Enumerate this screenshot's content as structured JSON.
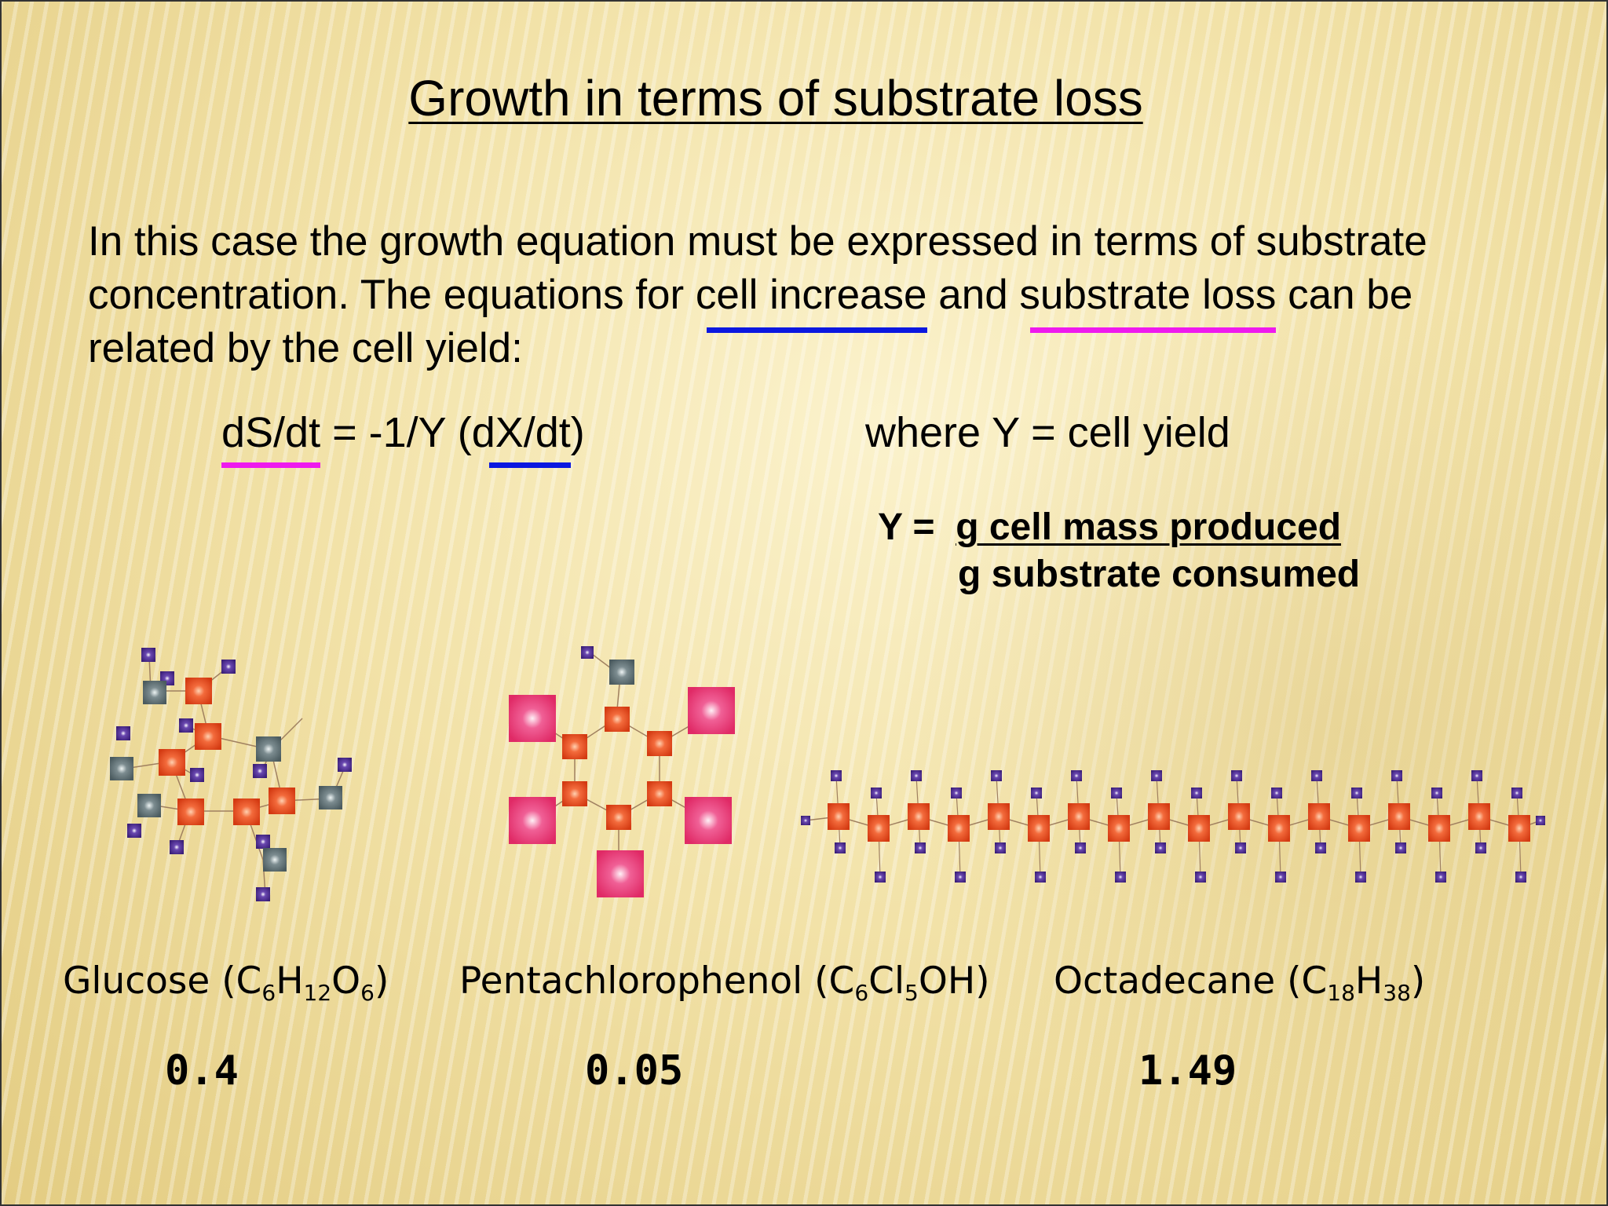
{
  "slide": {
    "title": "Growth in terms of substrate loss",
    "paragraph": {
      "line1": "In this case the growth equation must be expressed in terms of substrate",
      "line2_a": "concentration.  The equations for ",
      "line2_cell_increase": "cell increase",
      "line2_b": " and ",
      "line2_substrate_loss": "substrate loss",
      "line2_c": " can be",
      "line3": "related by the cell yield:"
    },
    "equation": {
      "ds_dt": "dS/dt",
      "middle": " = -1/Y (",
      "dx_dt": "dX/dt",
      "close": ")"
    },
    "where_text": "where Y = cell yield",
    "yield_def": {
      "prefix": "Y =  ",
      "numerator": "g cell mass produced",
      "denominator": "g substrate consumed"
    },
    "compounds": [
      {
        "name": "Glucose (C",
        "s1": "6",
        "m1": "H",
        "s2": "12",
        "m2": "O",
        "s3": "6",
        "end": ")",
        "yield": "0.4"
      },
      {
        "name": "Pentachlorophenol (C",
        "s1": "6",
        "m1": "Cl",
        "s2": "5",
        "end": "OH)",
        "yield": "0.05"
      },
      {
        "name": "Octadecane (C",
        "s1": "18",
        "m1": "H",
        "s2": "38",
        "end": ")",
        "yield": "1.49"
      }
    ]
  },
  "colors": {
    "cell_increase_underline": "#0b18e0",
    "substrate_loss_underline": "#ee1aee",
    "carbon_atom": "#e8431b",
    "hydrogen_atom": "#4a2a8a",
    "oxygen_atom": "#56666a",
    "chlorine_atom": "#e8306e"
  }
}
